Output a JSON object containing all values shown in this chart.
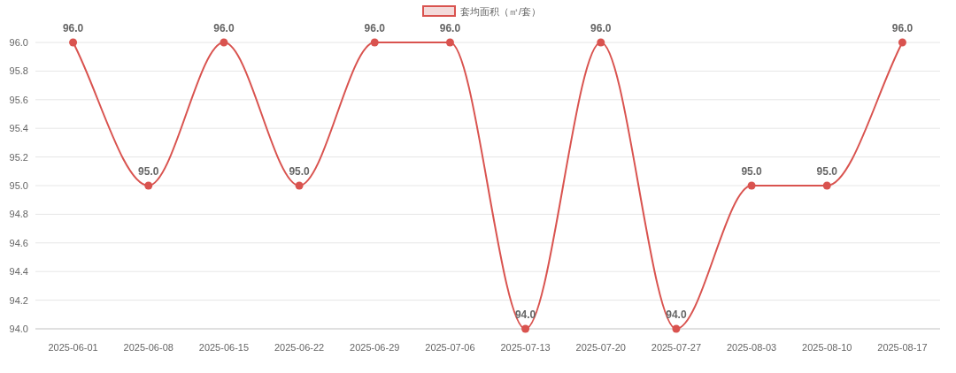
{
  "chart_data": {
    "type": "line",
    "categories": [
      "2025-06-01",
      "2025-06-08",
      "2025-06-15",
      "2025-06-22",
      "2025-06-29",
      "2025-07-06",
      "2025-07-13",
      "2025-07-20",
      "2025-07-27",
      "2025-08-03",
      "2025-08-10",
      "2025-08-17"
    ],
    "series": [
      {
        "name": "套均面积（㎡/套）",
        "color": "#d9534f",
        "values": [
          96,
          95,
          96,
          95,
          96,
          96,
          94,
          96,
          94,
          95,
          95,
          96
        ],
        "value_labels": [
          "96.0",
          "95.0",
          "96.0",
          "95.0",
          "96.0",
          "96.0",
          "94.0",
          "96.0",
          "94.0",
          "95.0",
          "95.0",
          "96.0"
        ]
      }
    ],
    "ylim": [
      94,
      96
    ],
    "yticks": [
      {
        "value": 94,
        "label": "94.0"
      },
      {
        "value": 94.2,
        "label": "94.2"
      },
      {
        "value": 94.4,
        "label": "94.4"
      },
      {
        "value": 94.6,
        "label": "94.6"
      },
      {
        "value": 94.8,
        "label": "94.8"
      },
      {
        "value": 95,
        "label": "95.0"
      },
      {
        "value": 95.2,
        "label": "95.2"
      },
      {
        "value": 95.4,
        "label": "95.4"
      },
      {
        "value": 95.6,
        "label": "95.6"
      },
      {
        "value": 95.8,
        "label": "95.8"
      },
      {
        "value": 96,
        "label": "96.0"
      }
    ],
    "grid": "y",
    "legend": "top",
    "marker": "circle",
    "line_style": "solid"
  }
}
